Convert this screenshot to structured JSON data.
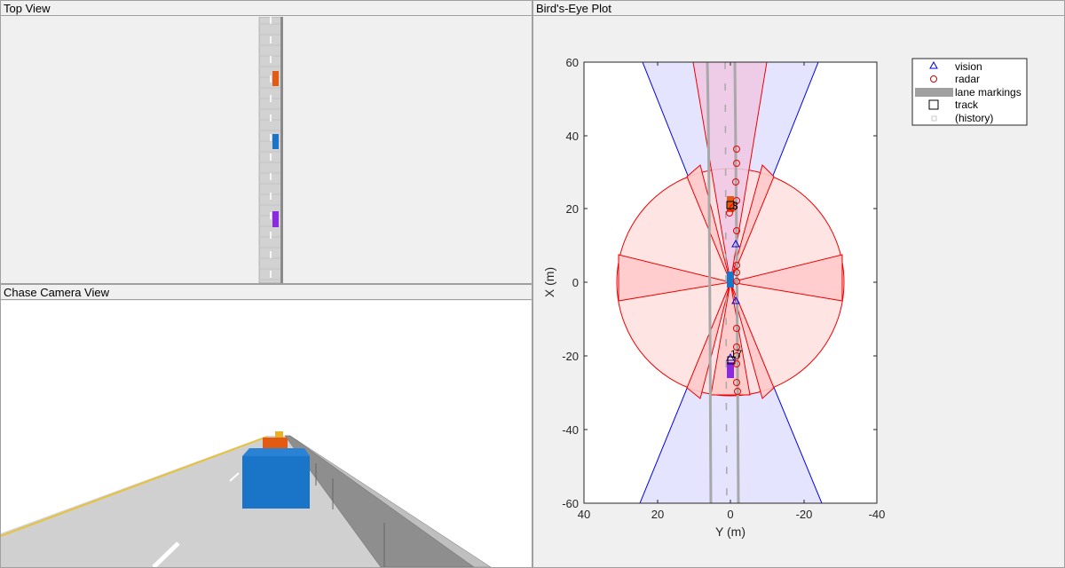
{
  "panels": {
    "top_view": {
      "title": "Top View"
    },
    "chase_camera": {
      "title": "Chase Camera View"
    },
    "birds_eye": {
      "title": "Bird's-Eye Plot"
    }
  },
  "birds_eye_plot": {
    "xlabel": "Y (m)",
    "ylabel": "X (m)",
    "x_ticks": [
      "40",
      "20",
      "0",
      "-20",
      "-40"
    ],
    "y_ticks": [
      "60",
      "40",
      "20",
      "0",
      "-20",
      "-40",
      "-60"
    ],
    "x_range": [
      40,
      -40
    ],
    "y_range": [
      -60,
      60
    ],
    "track_labels": [
      "3",
      "17"
    ],
    "legend": [
      {
        "label": "vision",
        "marker": "triangle-icon",
        "color": "#0000cc"
      },
      {
        "label": "radar",
        "marker": "circle-icon",
        "color": "#cc0000"
      },
      {
        "label": "lane markings",
        "marker": "gray-band-icon",
        "color": "#a0a0a0"
      },
      {
        "label": "track",
        "marker": "square-icon",
        "color": "#000000"
      },
      {
        "label": "(history)",
        "marker": "small-square-icon",
        "color": "#bbbbbb"
      }
    ]
  },
  "colors": {
    "ego_vehicle": "#1a74c7",
    "lead_vehicle": "#e35a12",
    "rear_vehicle": "#8a2be2",
    "vision_coverage": "#0000ff",
    "radar_coverage": "#ff0000",
    "road": "#d2d2d2",
    "barrier": "#9a9a9a"
  }
}
